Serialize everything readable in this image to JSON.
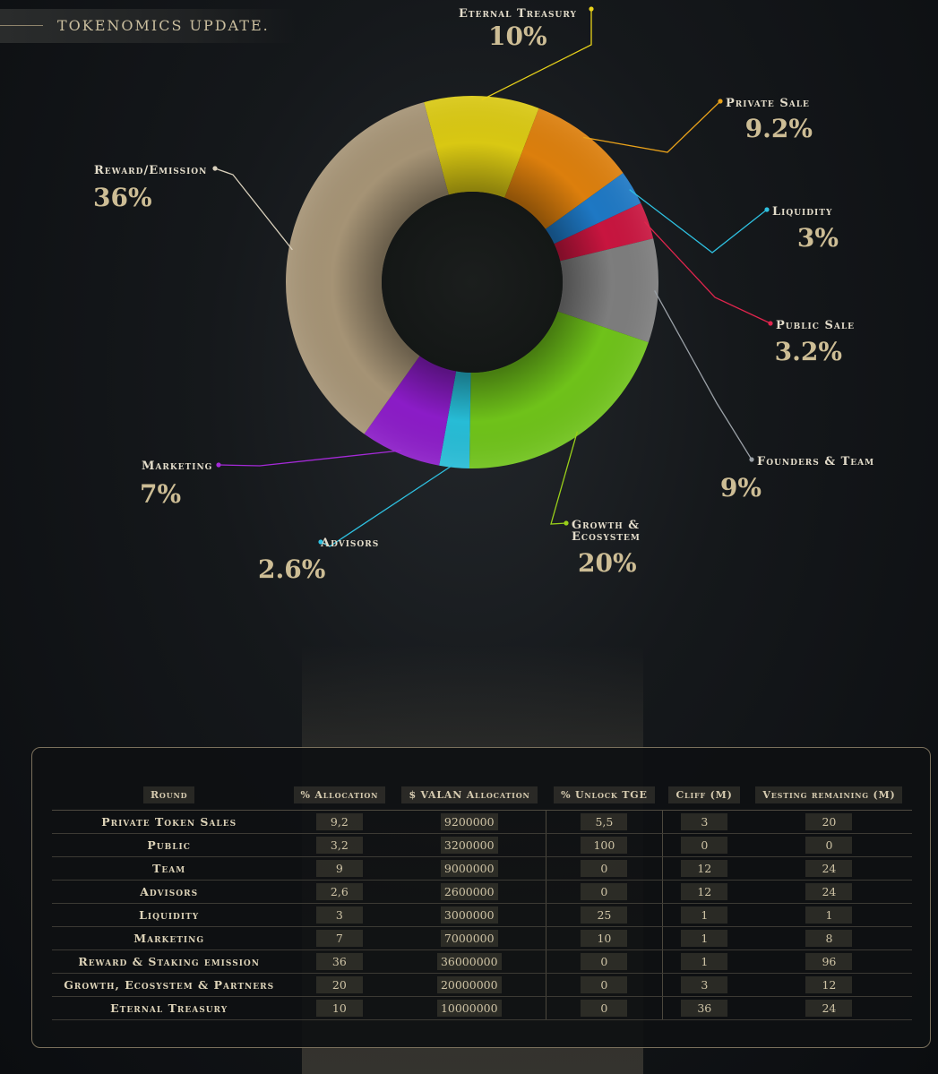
{
  "header": {
    "title": "TOKENOMICS UPDATE."
  },
  "chart_data": {
    "type": "pie",
    "categories": [
      "Eternal Treasury",
      "Private Sale",
      "Liquidity",
      "Public Sale",
      "Founders & Team",
      "Growth & Ecosystem",
      "Advisors",
      "Marketing",
      "Reward/Emission"
    ],
    "values": [
      10,
      9.2,
      3,
      3.2,
      9,
      20,
      2.6,
      7,
      36
    ],
    "value_labels": [
      "10%",
      "9.2%",
      "3%",
      "3.2%",
      "9%",
      "20%",
      "2.6%",
      "7%",
      "36%"
    ],
    "colors": [
      "#d9c813",
      "#dc7f0d",
      "#1e78c4",
      "#c8153f",
      "#7d7d7d",
      "#6fc21a",
      "#27bcd6",
      "#8b1cc7",
      "#a59375"
    ],
    "label_colors": [
      "#e8d21a",
      "#e8a11a",
      "#2ec0e0",
      "#e0254d",
      "#9aa0a6",
      "#9ad01a",
      "#2ec0e0",
      "#a52ad8",
      "#d9d0bc"
    ],
    "title": "TOKENOMICS UPDATE."
  },
  "table": {
    "headers": [
      "Round",
      "% Allocation",
      "$ VALAN Allocation",
      "% Unlock TGE",
      "Cliff (M)",
      "Vesting remaining (M)"
    ],
    "rows": [
      [
        "Private Token Sales",
        "9,2",
        "9200000",
        "5,5",
        "3",
        "20"
      ],
      [
        "Public",
        "3,2",
        "3200000",
        "100",
        "0",
        "0"
      ],
      [
        "Team",
        "9",
        "9000000",
        "0",
        "12",
        "24"
      ],
      [
        "Advisors",
        "2,6",
        "2600000",
        "0",
        "12",
        "24"
      ],
      [
        "Liquidity",
        "3",
        "3000000",
        "25",
        "1",
        "1"
      ],
      [
        "Marketing",
        "7",
        "7000000",
        "10",
        "1",
        "8"
      ],
      [
        "Reward & Staking emission",
        "36",
        "36000000",
        "0",
        "1",
        "96"
      ],
      [
        "Growth, Ecosystem & Partners",
        "20",
        "20000000",
        "0",
        "3",
        "12"
      ],
      [
        "Eternal Treasury",
        "10",
        "10000000",
        "0",
        "36",
        "24"
      ]
    ]
  }
}
